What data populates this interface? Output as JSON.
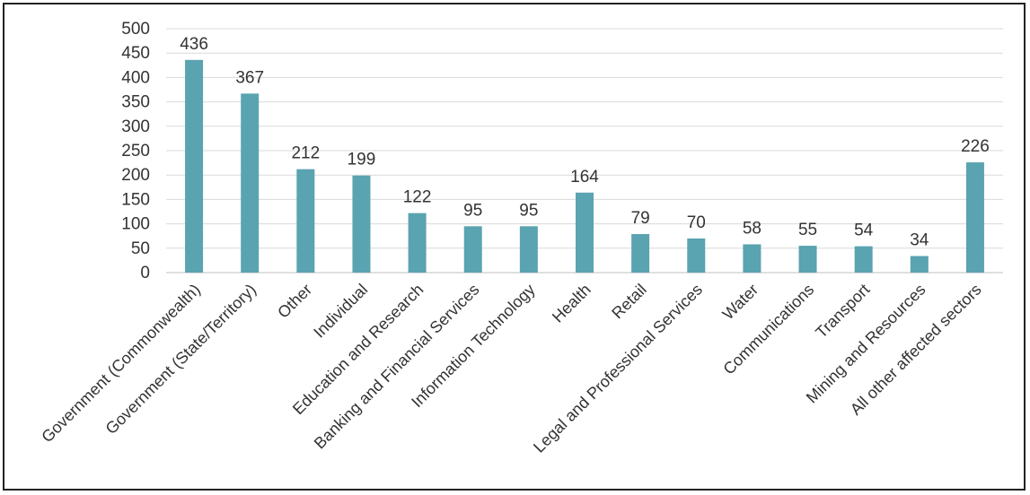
{
  "chart_data": {
    "type": "bar",
    "title": "",
    "xlabel": "",
    "ylabel": "",
    "ylim": [
      0,
      500
    ],
    "yticks": [
      0,
      50,
      100,
      150,
      200,
      250,
      300,
      350,
      400,
      450,
      500
    ],
    "grid": true,
    "bar_color": "#5aa3b0",
    "categories": [
      "Government (Commonwealth)",
      "Government (State/Territory)",
      "Other",
      "Individual",
      "Education and Research",
      "Banking and Financial Services",
      "Information Technology",
      "Health",
      "Retail",
      "Legal and Professional Services",
      "Water",
      "Communications",
      "Transport",
      "Mining and Resources",
      "All other affected sectors"
    ],
    "values": [
      436,
      367,
      212,
      199,
      122,
      95,
      95,
      164,
      79,
      70,
      58,
      55,
      54,
      34,
      226
    ]
  }
}
